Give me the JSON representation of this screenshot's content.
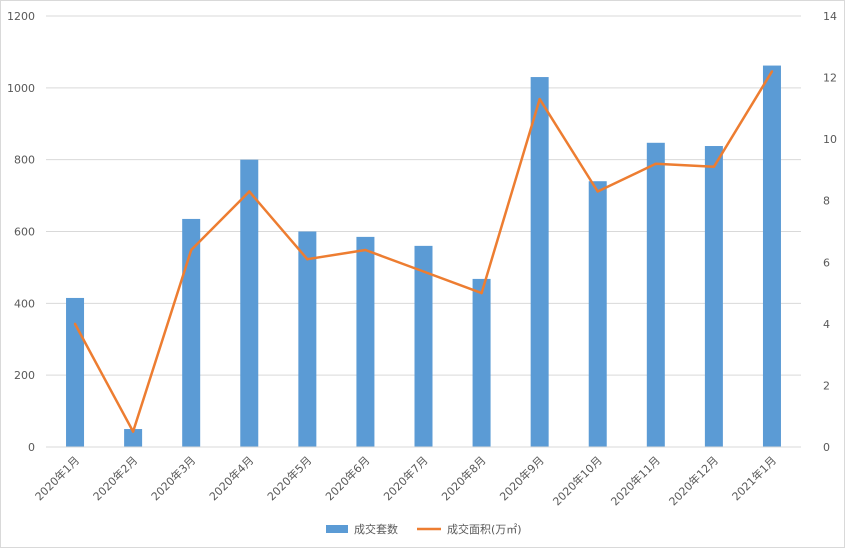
{
  "chart_data": {
    "type": "bar",
    "categories": [
      "2020年1月",
      "2020年2月",
      "2020年3月",
      "2020年4月",
      "2020年5月",
      "2020年6月",
      "2020年7月",
      "2020年8月",
      "2020年9月",
      "2020年10月",
      "2020年11月",
      "2020年12月",
      "2021年1月"
    ],
    "series": [
      {
        "name": "成交套数",
        "type": "bar",
        "axis": "left",
        "color": "#5b9bd5",
        "values": [
          415,
          50,
          635,
          800,
          600,
          585,
          560,
          468,
          1030,
          740,
          847,
          838,
          1062
        ]
      },
      {
        "name": "成交面积(万㎡)",
        "type": "line",
        "axis": "right",
        "color": "#ed7d31",
        "values": [
          4.0,
          0.5,
          6.4,
          8.3,
          6.1,
          6.4,
          5.7,
          5.0,
          11.3,
          8.3,
          9.2,
          9.1,
          12.2
        ]
      }
    ],
    "y_left": {
      "min": 0,
      "max": 1200,
      "ticks": [
        0,
        200,
        400,
        600,
        800,
        1000,
        1200
      ]
    },
    "y_right": {
      "min": 0,
      "max": 14,
      "ticks": [
        0,
        2,
        4,
        6,
        8,
        10,
        12,
        14
      ]
    },
    "grid": true,
    "legend": "bottom"
  }
}
